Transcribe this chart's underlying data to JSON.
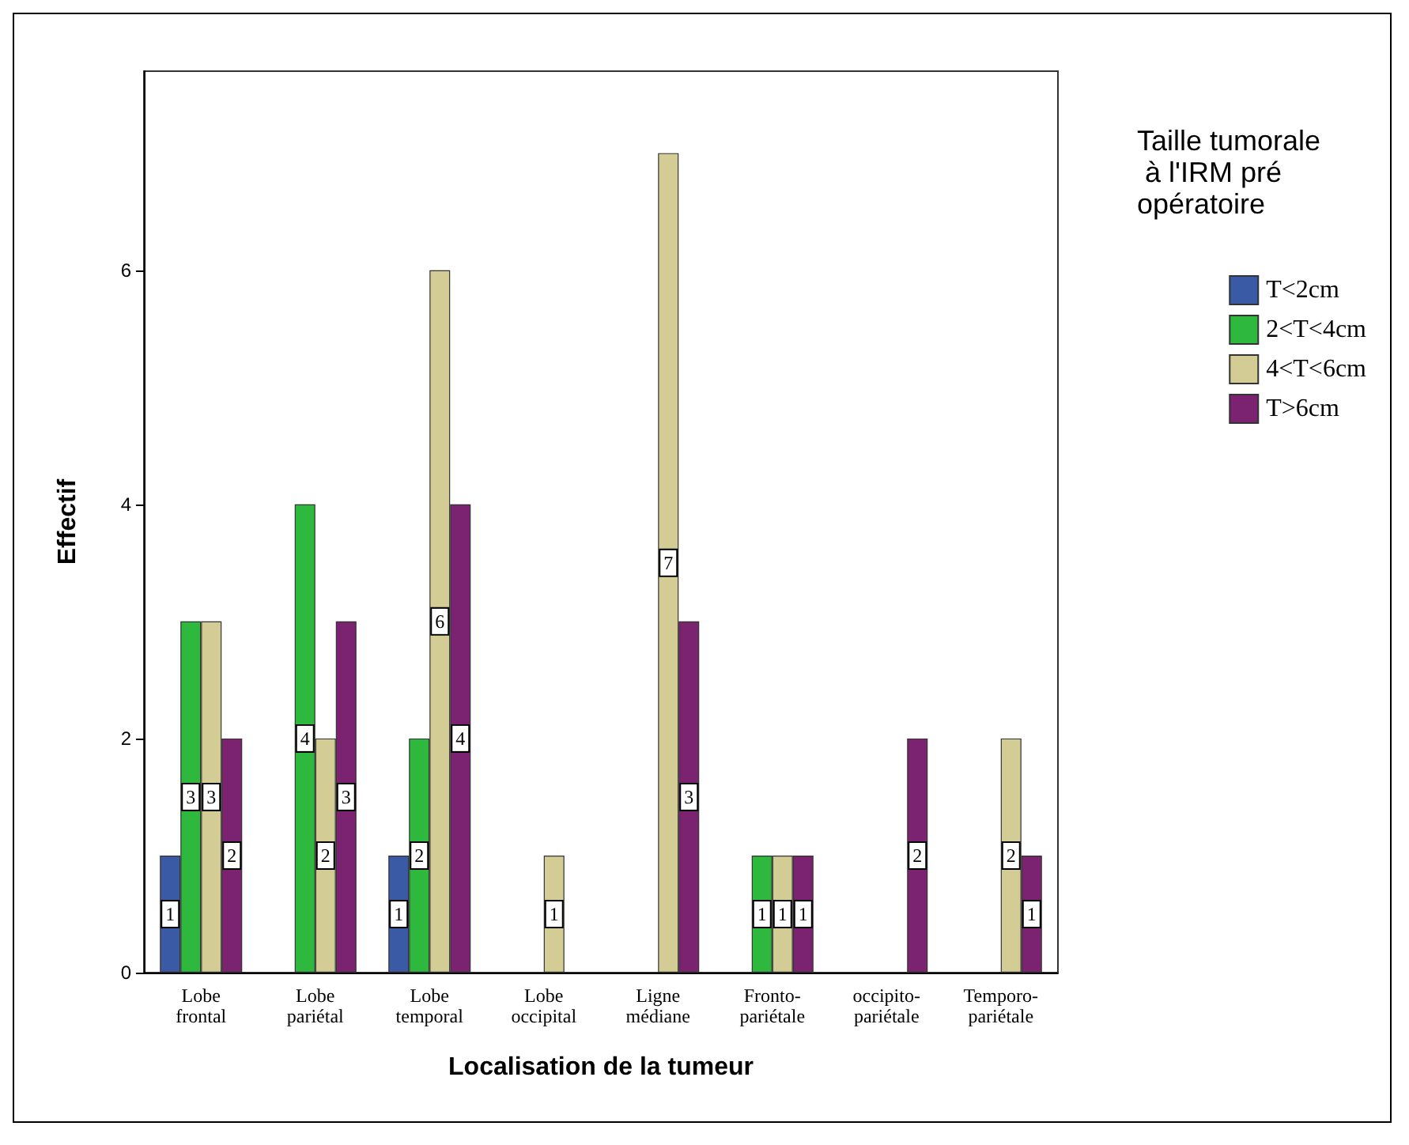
{
  "chart_data": {
    "type": "bar",
    "xlabel": "Localisation de la tumeur",
    "ylabel": "Effectif",
    "legend_title": "Taille tumorale à l'IRM pré opératoire",
    "categories": [
      "Lobe\nfrontal",
      "Lobe\npariétal",
      "Lobe\ntemporal",
      "Lobe\noccipital",
      "Ligne\nmédiane",
      "Fronto-\npariétale",
      "occipito-\npariétale",
      "Temporo-\npariétale"
    ],
    "series": [
      {
        "name": "T<2cm",
        "color": "#3b5aa6",
        "values": [
          1,
          null,
          1,
          null,
          null,
          null,
          null,
          null
        ]
      },
      {
        "name": "2<T<4cm",
        "color": "#2eb83e",
        "values": [
          3,
          4,
          2,
          null,
          null,
          1,
          null,
          null
        ]
      },
      {
        "name": "4<T<6cm",
        "color": "#d3cd95",
        "values": [
          3,
          2,
          6,
          1,
          7,
          1,
          null,
          2
        ]
      },
      {
        "name": "T>6cm",
        "color": "#7b2270",
        "values": [
          2,
          3,
          4,
          null,
          3,
          1,
          2,
          1
        ]
      }
    ],
    "ylim": [
      0,
      7.7
    ],
    "yticks": [
      0,
      2,
      4,
      6
    ],
    "data_labels": true,
    "legend": "top right"
  }
}
